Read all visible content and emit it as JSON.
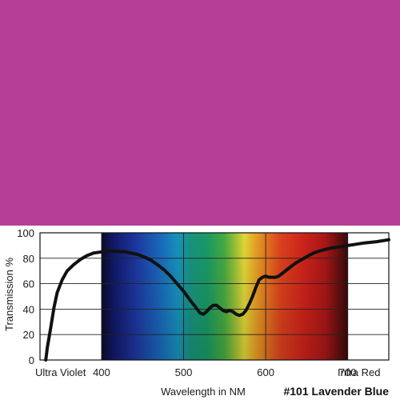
{
  "swatch": {
    "color": "#b63e96"
  },
  "chart_data": {
    "type": "line",
    "title": "",
    "product_label": "#101 Lavender Blue",
    "xlabel": "Wavelength in NM",
    "ylabel": "Transmission %",
    "ylim": [
      0,
      100
    ],
    "xlim": [
      325,
      750
    ],
    "y_ticks": [
      "0",
      "20",
      "40",
      "60",
      "80",
      "100"
    ],
    "x_ticks": [
      {
        "value": 400,
        "label": "400"
      },
      {
        "value": 500,
        "label": "500"
      },
      {
        "value": 600,
        "label": "600"
      },
      {
        "value": 700,
        "label": "700"
      }
    ],
    "region_labels": {
      "left": "Ultra Violet",
      "right": "Infra Red"
    },
    "spectrum_band": [
      400,
      700
    ],
    "grid": true,
    "series": [
      {
        "color": "#111111",
        "x": [
          332,
          334,
          338,
          342,
          346,
          352,
          358,
          366,
          374,
          382,
          390,
          400,
          410,
          420,
          428,
          436,
          444,
          452,
          460,
          468,
          476,
          484,
          492,
          500,
          508,
          514,
          520,
          524,
          528,
          532,
          536,
          540,
          544,
          548,
          552,
          556,
          560,
          564,
          568,
          572,
          576,
          580,
          584,
          588,
          592,
          596,
          600,
          604,
          608,
          612,
          616,
          620,
          628,
          636,
          644,
          652,
          660,
          670,
          680,
          690,
          700,
          710,
          720,
          735,
          750
        ],
        "values": [
          0,
          10,
          25,
          41,
          53,
          63,
          70,
          75,
          79,
          82,
          84,
          85,
          85.5,
          85.5,
          85,
          84,
          83,
          81,
          78.5,
          75,
          71,
          66,
          60,
          54,
          47,
          42,
          37,
          36,
          38,
          41,
          43,
          43,
          41,
          39,
          38,
          39,
          38,
          36,
          35,
          36,
          39,
          44,
          50,
          57,
          63,
          65,
          66,
          65,
          65,
          65,
          66,
          68,
          72,
          76,
          79,
          82,
          84.5,
          86.5,
          88,
          89,
          90,
          91,
          92,
          93,
          94.5
        ]
      }
    ]
  }
}
